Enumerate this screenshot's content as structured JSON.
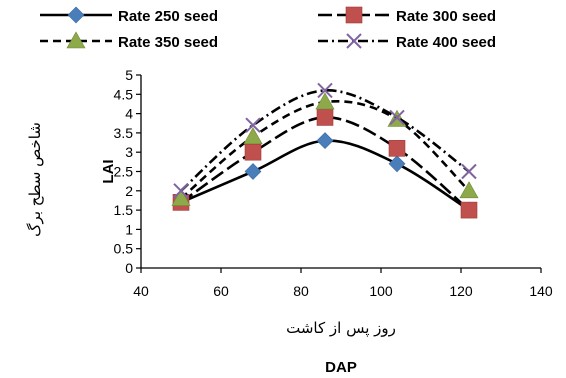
{
  "chart_data": {
    "type": "line",
    "xlabel": "DAP",
    "xlabel_fa": "روز پس از کاشت",
    "ylabel": "LAI",
    "ylabel_fa": "شاخص سطح برگ",
    "xlim": [
      40,
      140
    ],
    "ylim": [
      0,
      5
    ],
    "x_ticks": [
      "40",
      "60",
      "80",
      "100",
      "120",
      "140"
    ],
    "y_ticks": [
      "0",
      "0.5",
      "1",
      "1.5",
      "2",
      "2.5",
      "3",
      "3.5",
      "4",
      "4.5",
      "5"
    ],
    "grid": false,
    "legend_position": "top",
    "x": [
      50,
      68,
      86,
      104,
      122
    ],
    "series": [
      {
        "name": "Rate 250 seed",
        "marker": "diamond",
        "marker_color": "#4a7ebb",
        "line_style": "solid",
        "values": [
          1.7,
          2.5,
          3.3,
          2.7,
          1.5
        ]
      },
      {
        "name": "Rate 300 seed",
        "marker": "square",
        "marker_color": "#c0504d",
        "line_style": "long-dash",
        "values": [
          1.7,
          3.0,
          3.9,
          3.1,
          1.5
        ]
      },
      {
        "name": "Rate 350 seed",
        "marker": "triangle",
        "marker_color": "#8ea94a",
        "line_style": "dash",
        "values": [
          1.8,
          3.4,
          4.3,
          3.85,
          2.0
        ]
      },
      {
        "name": "Rate 400 seed",
        "marker": "x",
        "marker_color": "#8064a2",
        "line_style": "dash-dot",
        "values": [
          2.0,
          3.7,
          4.6,
          3.9,
          2.5
        ]
      }
    ]
  }
}
